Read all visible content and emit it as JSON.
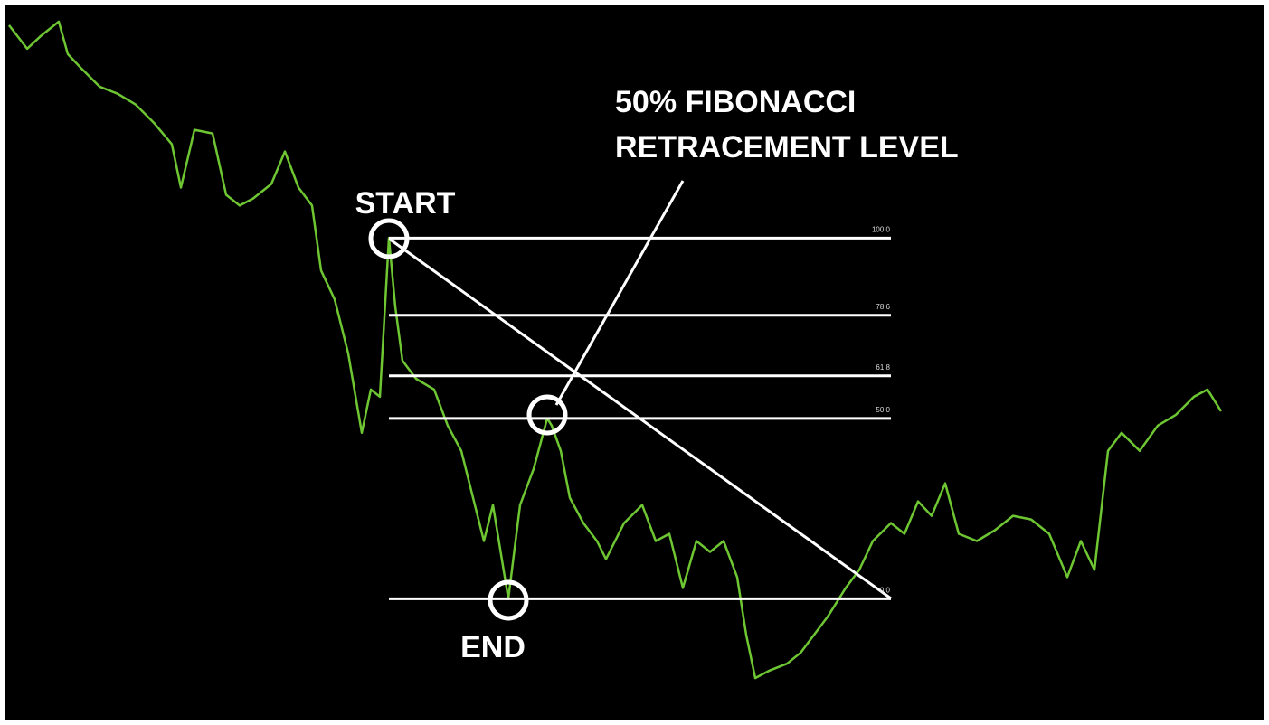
{
  "chart_data": {
    "type": "line",
    "color": "#6ec632",
    "annotations": {
      "start": "START",
      "end": "END",
      "note_line1": "50% FIBONACCI",
      "note_line2": "RETRACEMENT LEVEL"
    },
    "xlim": [
      0,
      140
    ],
    "ylim": [
      -35,
      166
    ],
    "yticks": [
      {
        "value": 100,
        "label": "100.0"
      },
      78.6,
      61.8,
      {
        "value": 50,
        "label": "50.0"
      },
      {
        "value": 0,
        "label": "0.0"
      }
    ],
    "grid": true,
    "x": [
      1,
      3,
      4.5,
      6.5,
      7.5,
      9,
      11,
      13,
      15,
      17,
      19,
      20,
      21.5,
      23.5,
      25,
      26.5,
      28,
      30,
      31.5,
      33,
      34.5,
      35.5,
      37,
      38.5,
      40,
      41,
      42,
      43,
      43.7,
      44.5,
      46,
      48,
      49.5,
      51,
      52,
      53.5,
      54.5,
      56.2,
      57.5,
      59,
      60.5,
      61,
      62,
      63,
      64.5,
      66,
      67,
      69,
      71,
      72.5,
      74,
      75.5,
      77,
      78.5,
      80,
      81.5,
      82.5,
      83.5,
      85,
      87,
      88.5,
      90,
      91.5,
      93.5,
      95,
      96.5,
      98.5,
      100,
      101.5,
      103,
      104.5,
      106,
      108,
      110,
      112,
      114,
      116,
      118,
      119.5,
      121,
      122.5,
      124,
      126,
      128,
      130,
      132,
      133.5,
      135
    ],
    "values": [
      159,
      152.5,
      156,
      160,
      151,
      147,
      142,
      140,
      137,
      132,
      126,
      114,
      130,
      129,
      112,
      109,
      111,
      115,
      124,
      114,
      109,
      91,
      83,
      68,
      46,
      58,
      56,
      100,
      81,
      66,
      61,
      58,
      48,
      41,
      31,
      16,
      26,
      0,
      26,
      36,
      50,
      48,
      41,
      28,
      21,
      16,
      11,
      21,
      26,
      16,
      18,
      3,
      16,
      13,
      16,
      6,
      -10,
      -22,
      -20,
      -18,
      -15,
      -10,
      -5,
      3,
      8,
      16,
      21,
      18,
      27,
      23,
      32,
      18,
      16,
      19,
      23,
      22,
      18,
      6,
      16,
      8,
      41,
      46,
      41,
      48,
      51,
      56,
      58,
      52
    ]
  }
}
